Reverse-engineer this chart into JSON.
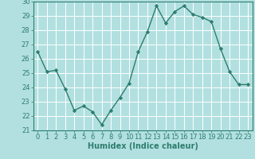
{
  "x": [
    0,
    1,
    2,
    3,
    4,
    5,
    6,
    7,
    8,
    9,
    10,
    11,
    12,
    13,
    14,
    15,
    16,
    17,
    18,
    19,
    20,
    21,
    22,
    23
  ],
  "y": [
    26.5,
    25.1,
    25.2,
    23.9,
    22.4,
    22.7,
    22.3,
    21.4,
    22.4,
    23.3,
    24.3,
    26.5,
    27.9,
    29.7,
    28.5,
    29.3,
    29.7,
    29.1,
    28.9,
    28.6,
    26.7,
    25.1,
    24.2,
    24.2
  ],
  "line_color": "#2e7d6e",
  "marker": "D",
  "marker_size": 2.2,
  "bg_color": "#b2e0e0",
  "grid_color": "#ffffff",
  "xlabel": "Humidex (Indice chaleur)",
  "ylim": [
    21,
    30
  ],
  "xlim": [
    -0.5,
    23.5
  ],
  "yticks": [
    21,
    22,
    23,
    24,
    25,
    26,
    27,
    28,
    29,
    30
  ],
  "xticks": [
    0,
    1,
    2,
    3,
    4,
    5,
    6,
    7,
    8,
    9,
    10,
    11,
    12,
    13,
    14,
    15,
    16,
    17,
    18,
    19,
    20,
    21,
    22,
    23
  ],
  "xlabel_fontsize": 7,
  "tick_fontsize": 6,
  "line_width": 1.0
}
